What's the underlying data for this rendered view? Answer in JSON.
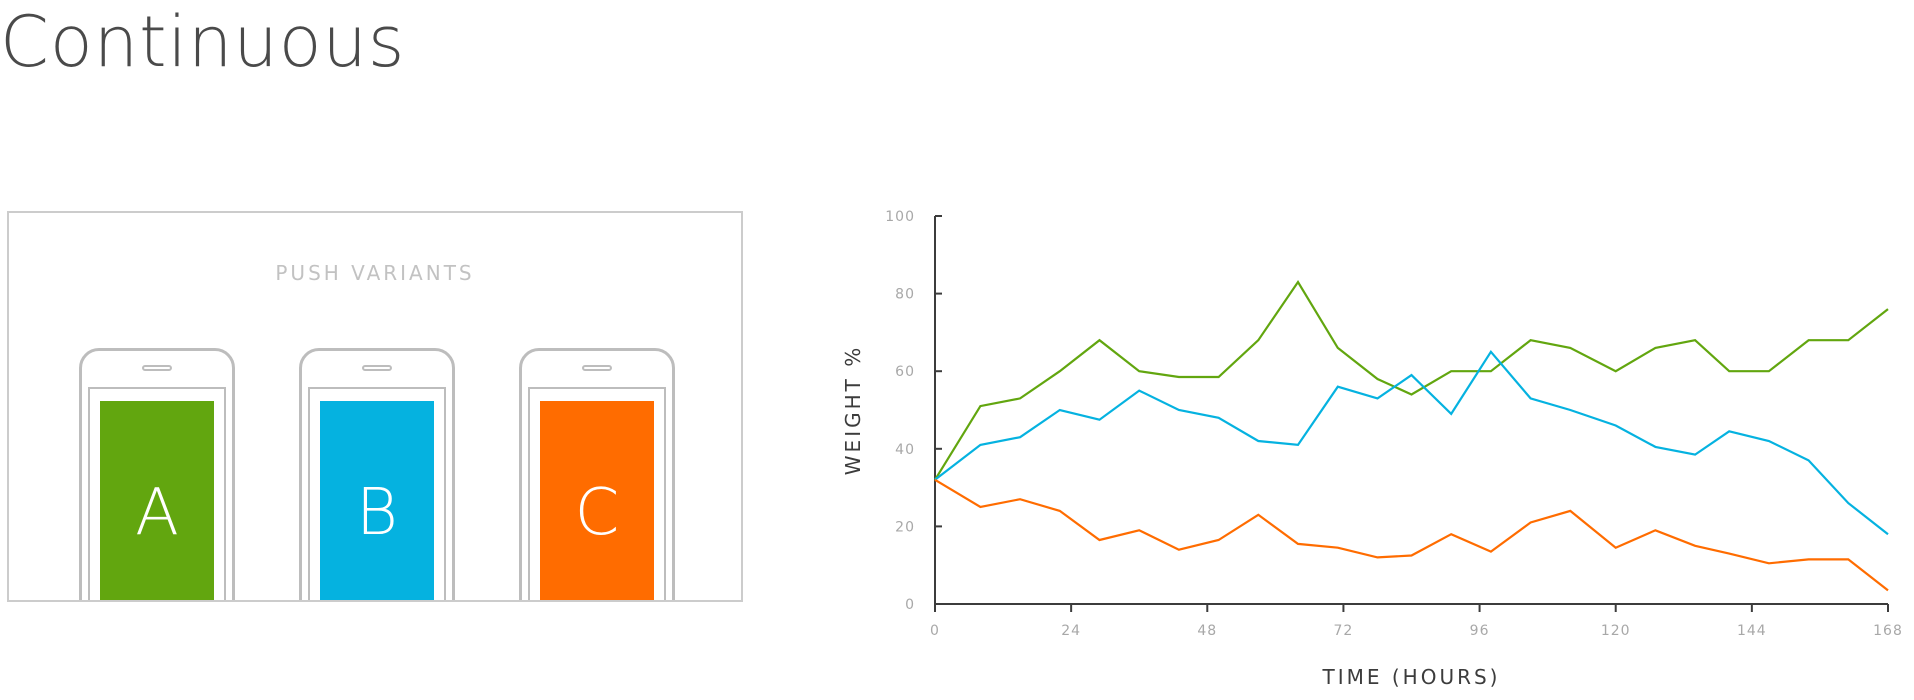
{
  "title": "Continuous",
  "variants_panel": {
    "heading": "PUSH VARIANTS",
    "variants": [
      {
        "label": "A",
        "color": "#62a60f"
      },
      {
        "label": "B",
        "color": "#05b2e0"
      },
      {
        "label": "C",
        "color": "#ff6c00"
      }
    ]
  },
  "chart_data": {
    "type": "line",
    "xlabel": "TIME (HOURS)",
    "ylabel": "WEIGHT %",
    "xlim": [
      0,
      168
    ],
    "ylim": [
      0,
      100
    ],
    "xticks": [
      0,
      24,
      48,
      72,
      96,
      120,
      144,
      168
    ],
    "yticks": [
      0,
      20,
      40,
      60,
      80,
      100
    ],
    "grid": false,
    "legend": "none",
    "x": [
      0,
      8,
      15,
      22,
      29,
      36,
      43,
      50,
      57,
      64,
      71,
      78,
      84,
      91,
      98,
      105,
      112,
      120,
      127,
      134,
      140,
      147,
      154,
      161,
      168
    ],
    "series": [
      {
        "color": "#62a60f",
        "values": [
          32,
          51,
          53,
          60,
          68,
          60,
          58.5,
          58.5,
          68,
          83,
          66,
          58,
          54,
          60,
          60,
          68,
          66,
          60,
          66,
          68,
          60,
          60,
          68,
          68,
          76
        ]
      },
      {
        "color": "#05b2e0",
        "values": [
          32,
          41,
          43,
          50,
          47.5,
          55,
          50,
          48,
          42,
          41,
          56,
          53,
          59,
          49,
          65,
          53,
          50,
          46,
          40.5,
          38.5,
          44.5,
          42,
          37,
          26,
          18
        ]
      },
      {
        "color": "#ff6c00",
        "values": [
          32,
          25,
          27,
          24,
          16.5,
          19,
          14,
          16.5,
          23,
          15.5,
          14.5,
          12,
          12.5,
          18,
          13.5,
          21,
          24,
          14.5,
          19,
          15,
          13,
          10.5,
          11.5,
          11.5,
          3.5
        ]
      }
    ]
  }
}
